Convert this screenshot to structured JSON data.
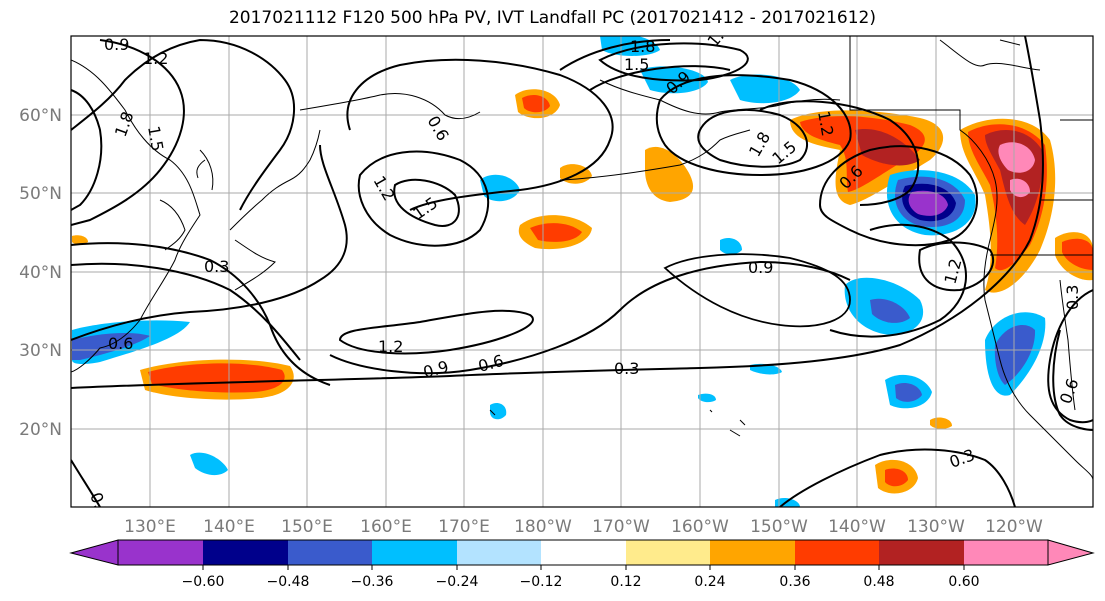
{
  "title": "2017021112 F120 500 hPa PV, IVT Landfall PC (2017021412 - 2017021612)",
  "lon_ticks": [
    "130°E",
    "140°E",
    "150°E",
    "160°E",
    "170°E",
    "180°W",
    "170°W",
    "160°W",
    "150°W",
    "140°W",
    "130°W",
    "120°W"
  ],
  "lat_ticks": [
    "60°N",
    "50°N",
    "40°N",
    "30°N",
    "20°N"
  ],
  "colorbar": {
    "tick_labels": [
      "−0.60",
      "−0.48",
      "−0.36",
      "−0.24",
      "−0.12",
      "0.12",
      "0.24",
      "0.36",
      "0.48",
      "0.60"
    ],
    "colors": [
      "#9933cc",
      "#00008b",
      "#3a5bcc",
      "#00bfff",
      "#b3e3ff",
      "#ffffff",
      "#ffeb8c",
      "#ffa500",
      "#ff3c00",
      "#b22222",
      "#ff88b8"
    ]
  },
  "contour_labels": [
    "0.9",
    "1.2",
    "1.5",
    "1.8",
    "1.2",
    "1.5",
    "1.8",
    "1.5",
    "0.9",
    "0.6",
    "1.2",
    "1.5",
    "1.8",
    "1.5",
    "0.6",
    "0.9",
    "1.2",
    "0.3",
    "0.3",
    "1.2",
    "0.9",
    "0.6",
    "0.3",
    "0.6",
    "0.3",
    "0.6",
    "0.3"
  ]
}
